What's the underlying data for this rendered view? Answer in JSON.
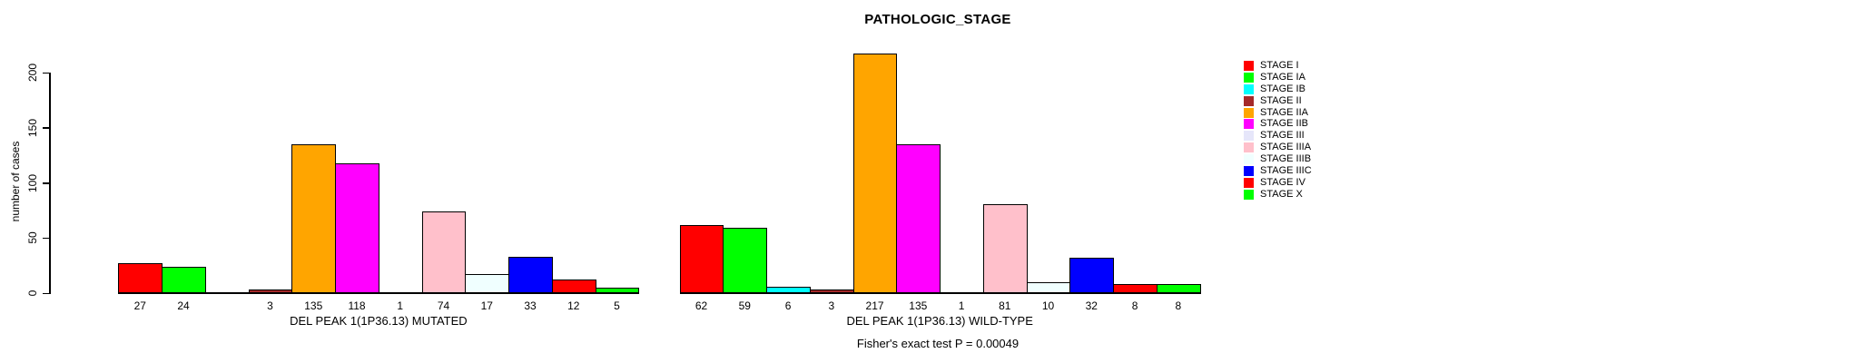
{
  "chart_data": {
    "type": "bar",
    "title": "PATHOLOGIC_STAGE",
    "ylabel": "number of cases",
    "xlabel": "",
    "ylim": [
      0,
      220
    ],
    "yticks": [
      0,
      50,
      100,
      150,
      200
    ],
    "grid": false,
    "legend_position": "right",
    "stages": [
      {
        "label": "STAGE I",
        "color": "#FF0000"
      },
      {
        "label": "STAGE IA",
        "color": "#00FF00"
      },
      {
        "label": "STAGE IB",
        "color": "#00FFFF"
      },
      {
        "label": "STAGE II",
        "color": "#A52A2A"
      },
      {
        "label": "STAGE IIA",
        "color": "#FFA500"
      },
      {
        "label": "STAGE IIB",
        "color": "#FF00FF"
      },
      {
        "label": "STAGE III",
        "color": "#E6E6FA"
      },
      {
        "label": "STAGE IIIA",
        "color": "#FFC0CB"
      },
      {
        "label": "STAGE IIIB",
        "color": "#F0FFFF"
      },
      {
        "label": "STAGE IIIC",
        "color": "#0000FF"
      },
      {
        "label": "STAGE IV",
        "color": "#FF0000"
      },
      {
        "label": "STAGE X",
        "color": "#00FF00"
      }
    ],
    "groups": [
      {
        "label": "DEL PEAK 1(1P36.13) MUTATED",
        "values": [
          27,
          24,
          null,
          3,
          135,
          118,
          1,
          74,
          17,
          33,
          12,
          5
        ]
      },
      {
        "label": "DEL PEAK 1(1P36.13) WILD-TYPE",
        "values": [
          62,
          59,
          6,
          3,
          217,
          135,
          1,
          81,
          10,
          32,
          8,
          8
        ]
      }
    ],
    "annotation": "Fisher's exact test P = 0.00049"
  }
}
